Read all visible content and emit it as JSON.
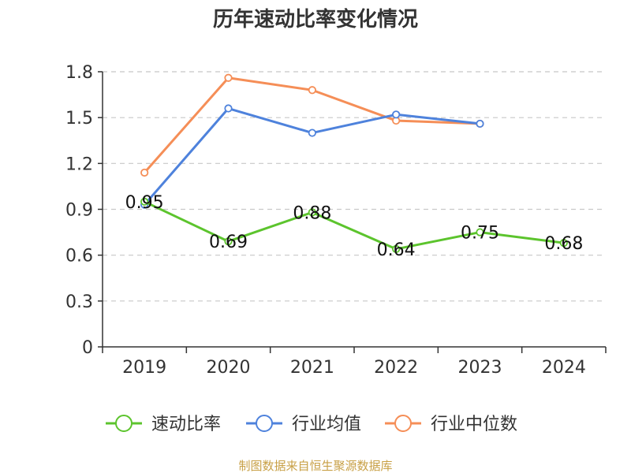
{
  "chart_data": {
    "type": "line",
    "title": "历年速动比率变化情况",
    "categories": [
      "2019",
      "2020",
      "2021",
      "2022",
      "2023",
      "2024"
    ],
    "y_ticks": [
      "0",
      "0.3",
      "0.6",
      "0.9",
      "1.2",
      "1.5",
      "1.8"
    ],
    "ylim": [
      0,
      1.8
    ],
    "grid": true,
    "legend_position": "bottom",
    "series": [
      {
        "name": "速动比率",
        "color": "#5cc42d",
        "values": [
          0.95,
          0.69,
          0.88,
          0.64,
          0.75,
          0.68
        ],
        "labels": [
          "0.95",
          "0.69",
          "0.88",
          "0.64",
          "0.75",
          "0.68"
        ]
      },
      {
        "name": "行业均值",
        "color": "#4e82dc",
        "values": [
          0.93,
          1.56,
          1.4,
          1.52,
          1.46,
          null
        ]
      },
      {
        "name": "行业中位数",
        "color": "#f58e57",
        "values": [
          1.14,
          1.76,
          1.68,
          1.48,
          1.46,
          null
        ]
      }
    ],
    "source": "制图数据来自恒生聚源数据库"
  }
}
